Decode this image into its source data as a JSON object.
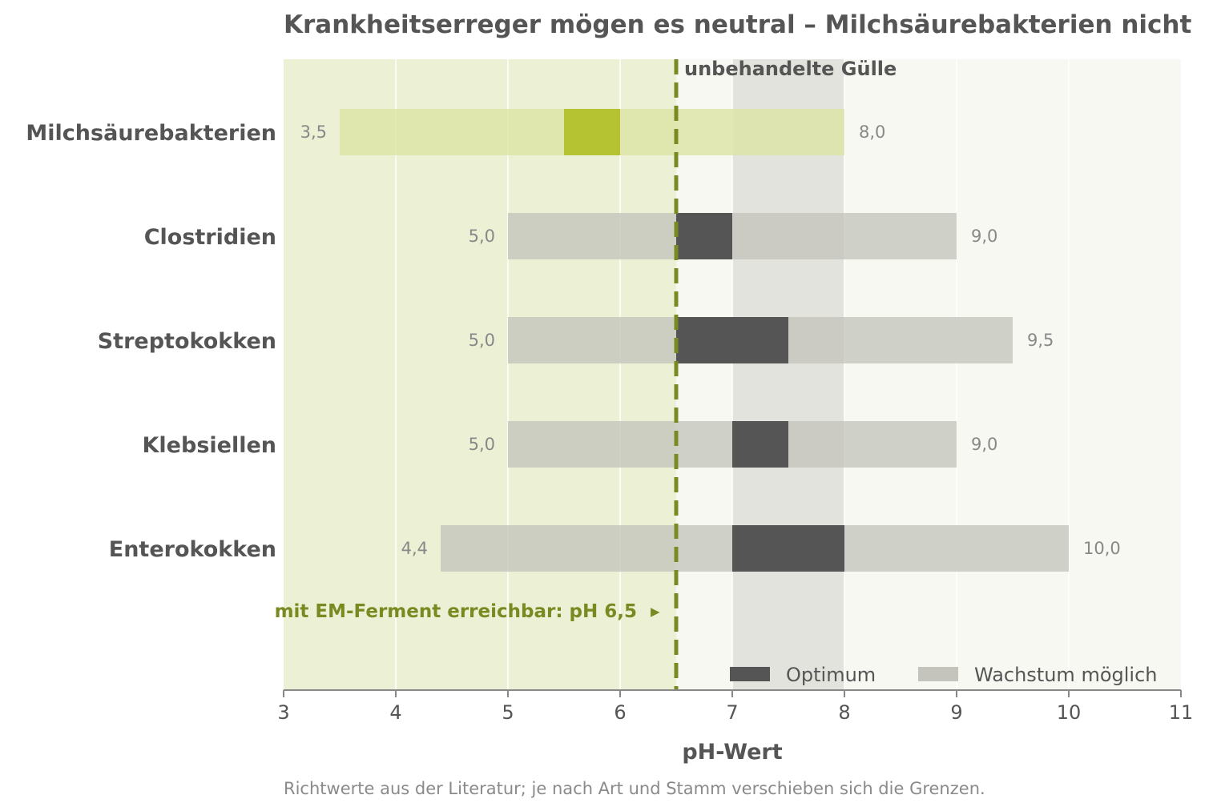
{
  "chart_data": {
    "type": "bar",
    "subtype": "horizontal-range",
    "title": "Krankheitserreger mögen es neutral – Milchsäurebakterien nicht",
    "xlabel": "pH-Wert",
    "ylabel": "",
    "xlim": [
      3,
      11
    ],
    "xticks": [
      3,
      4,
      5,
      6,
      7,
      8,
      9,
      10,
      11
    ],
    "grid": "vertical",
    "categories": [
      "Milchsäurebakterien",
      "Clostridien",
      "Streptokokken",
      "Klebsiellen",
      "Enterokokken"
    ],
    "series": [
      {
        "name": "Wachstum möglich",
        "ranges": [
          [
            3.5,
            8.0
          ],
          [
            5.0,
            9.0
          ],
          [
            5.0,
            9.5
          ],
          [
            5.0,
            9.0
          ],
          [
            4.4,
            10.0
          ]
        ],
        "min_labels": [
          "3,5",
          "5,0",
          "5,0",
          "5,0",
          "4,4"
        ],
        "max_labels": [
          "8,0",
          "9,0",
          "9,5",
          "9,0",
          "10,0"
        ]
      },
      {
        "name": "Optimum",
        "ranges": [
          [
            5.5,
            6.0
          ],
          [
            6.5,
            7.0
          ],
          [
            6.5,
            7.5
          ],
          [
            7.0,
            7.5
          ],
          [
            7.0,
            8.0
          ]
        ]
      }
    ],
    "shaded_regions": [
      {
        "range": [
          3,
          6.5
        ]
      },
      {
        "range": [
          7,
          8
        ]
      }
    ],
    "reference_line": {
      "x": 6.5,
      "label": "mit EM-Ferment erreichbar: pH 6,5",
      "arrow": "▸"
    },
    "region_label": "unbehandelte Gülle",
    "legend": {
      "position": "bottom-right",
      "items": [
        "Optimum",
        "Wachstum möglich"
      ]
    },
    "note": "Richtwerte aus der Literatur; je nach Art und Stamm verschieben sich die Grenzen."
  },
  "colors": {
    "optimum": "#555555",
    "growth": "#c4c4bc",
    "lactic_optimum": "#b5c232",
    "lactic_growth": "#dde4a6",
    "acid_zone": "#ecf0d4",
    "neutral_zone": "#f7f8f2",
    "slurry_zone": "#e3e3dd",
    "reference": "#7a8a22"
  }
}
